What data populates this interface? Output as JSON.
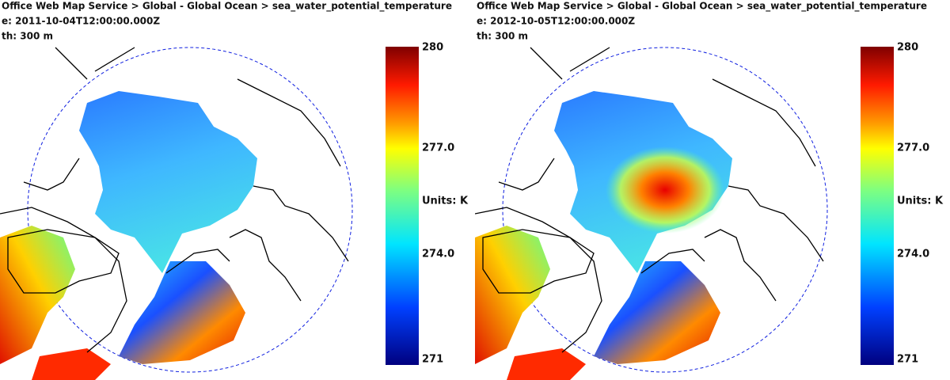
{
  "panels": [
    {
      "breadcrumb": "Office Web Map Service > Global - Global Ocean > sea_water_potential_temperature",
      "date": "e: 2011-10-04T12:00:00.000Z",
      "depth": "th: 300 m",
      "colorbar": {
        "max": "280",
        "high": "277.0",
        "units": "Units: K",
        "low": "274.0",
        "min": "271"
      }
    },
    {
      "breadcrumb": "Office Web Map Service > Global - Global Ocean > sea_water_potential_temperature",
      "date": "e: 2012-10-05T12:00:00.000Z",
      "depth": "th: 300 m",
      "colorbar": {
        "max": "280",
        "high": "277.0",
        "units": "Units: K",
        "low": "274.0",
        "min": "271"
      }
    }
  ]
}
